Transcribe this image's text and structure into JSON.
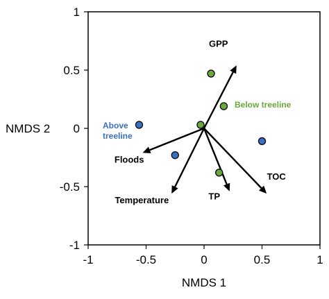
{
  "chart_data": {
    "type": "scatter",
    "xlabel": "NMDS 1",
    "ylabel": "NMDS 2",
    "xlim": [
      -1,
      1
    ],
    "ylim": [
      -1,
      1
    ],
    "xticks": [
      "-1",
      "-0.5",
      "0",
      "0.5",
      "1"
    ],
    "yticks": [
      "1",
      "0.5",
      "0",
      "-0.5",
      "-1"
    ],
    "grid": false,
    "colors": {
      "above": "#3a6fc4",
      "below": "#6aaa3a",
      "arrow": "#000000"
    },
    "series": [
      {
        "name": "Above treeline",
        "color_key": "above",
        "label_lines": [
          "Above",
          "treeline"
        ],
        "points": [
          {
            "x": -0.56,
            "y": 0.03
          },
          {
            "x": -0.25,
            "y": -0.23
          },
          {
            "x": 0.5,
            "y": -0.11
          }
        ]
      },
      {
        "name": "Below treeline",
        "color_key": "below",
        "label_lines": [
          "Below treeline"
        ],
        "points": [
          {
            "x": 0.06,
            "y": 0.47
          },
          {
            "x": 0.17,
            "y": 0.19
          },
          {
            "x": -0.03,
            "y": 0.03
          },
          {
            "x": 0.13,
            "y": -0.38
          }
        ]
      }
    ],
    "vectors": [
      {
        "label": "GPP",
        "x": 0.28,
        "y": 0.54
      },
      {
        "label": "Floods",
        "x": -0.53,
        "y": -0.21
      },
      {
        "label": "Temperature",
        "x": -0.28,
        "y": -0.56
      },
      {
        "label": "TP",
        "x": 0.22,
        "y": -0.54
      },
      {
        "label": "TOC",
        "x": 0.54,
        "y": -0.56
      }
    ]
  }
}
